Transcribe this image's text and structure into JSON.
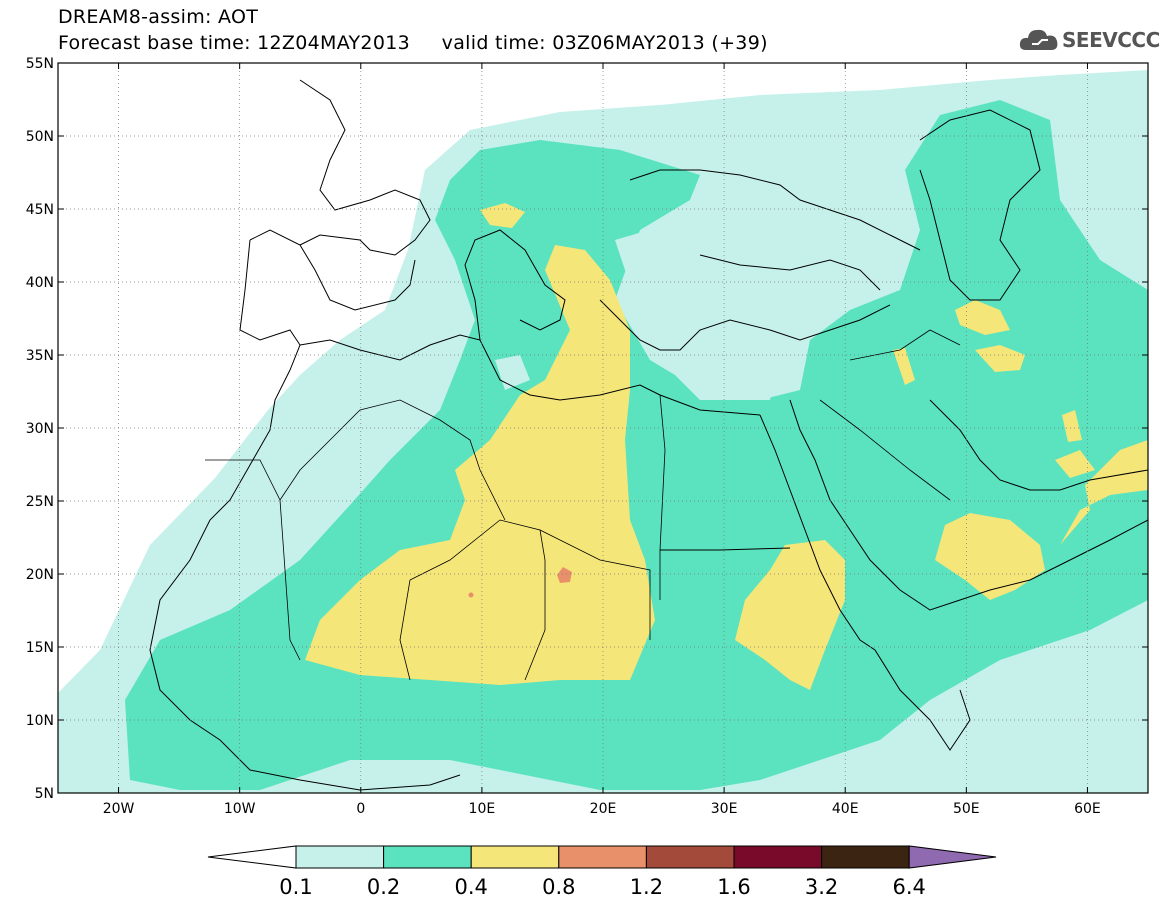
{
  "header": {
    "line1": "DREAM8-assim: AOT",
    "line2": "Forecast base time: 12Z04MAY2013     valid time: 03Z06MAY2013 (+39)",
    "logo_text": "SEEVCCC",
    "logo_icon": "cloud-logo-icon"
  },
  "map": {
    "lon_range": [
      -25,
      65
    ],
    "lat_range": [
      5,
      55
    ],
    "x_ticks": [
      {
        "lon": -20,
        "label": "20W"
      },
      {
        "lon": -10,
        "label": "10W"
      },
      {
        "lon": 0,
        "label": "0"
      },
      {
        "lon": 10,
        "label": "10E"
      },
      {
        "lon": 20,
        "label": "20E"
      },
      {
        "lon": 30,
        "label": "30E"
      },
      {
        "lon": 40,
        "label": "40E"
      },
      {
        "lon": 50,
        "label": "50E"
      },
      {
        "lon": 60,
        "label": "60E"
      }
    ],
    "y_ticks": [
      {
        "lat": 55,
        "label": "55N"
      },
      {
        "lat": 50,
        "label": "50N"
      },
      {
        "lat": 45,
        "label": "45N"
      },
      {
        "lat": 40,
        "label": "40N"
      },
      {
        "lat": 35,
        "label": "35N"
      },
      {
        "lat": 30,
        "label": "30N"
      },
      {
        "lat": 25,
        "label": "25N"
      },
      {
        "lat": 20,
        "label": "20N"
      },
      {
        "lat": 15,
        "label": "15N"
      },
      {
        "lat": 10,
        "label": "10N"
      },
      {
        "lat": 5,
        "label": "5N"
      }
    ],
    "grid": "dotted"
  },
  "colorbar": {
    "colors": [
      "#ffffff",
      "#c5f1ea",
      "#5ae3be",
      "#f5e67a",
      "#e8906a",
      "#a34a3a",
      "#7a0a2a",
      "#3b2412",
      "#8f6ab0"
    ],
    "labels": [
      "0.1",
      "0.2",
      "0.4",
      "0.8",
      "1.2",
      "1.6",
      "3.2",
      "6.4"
    ]
  }
}
